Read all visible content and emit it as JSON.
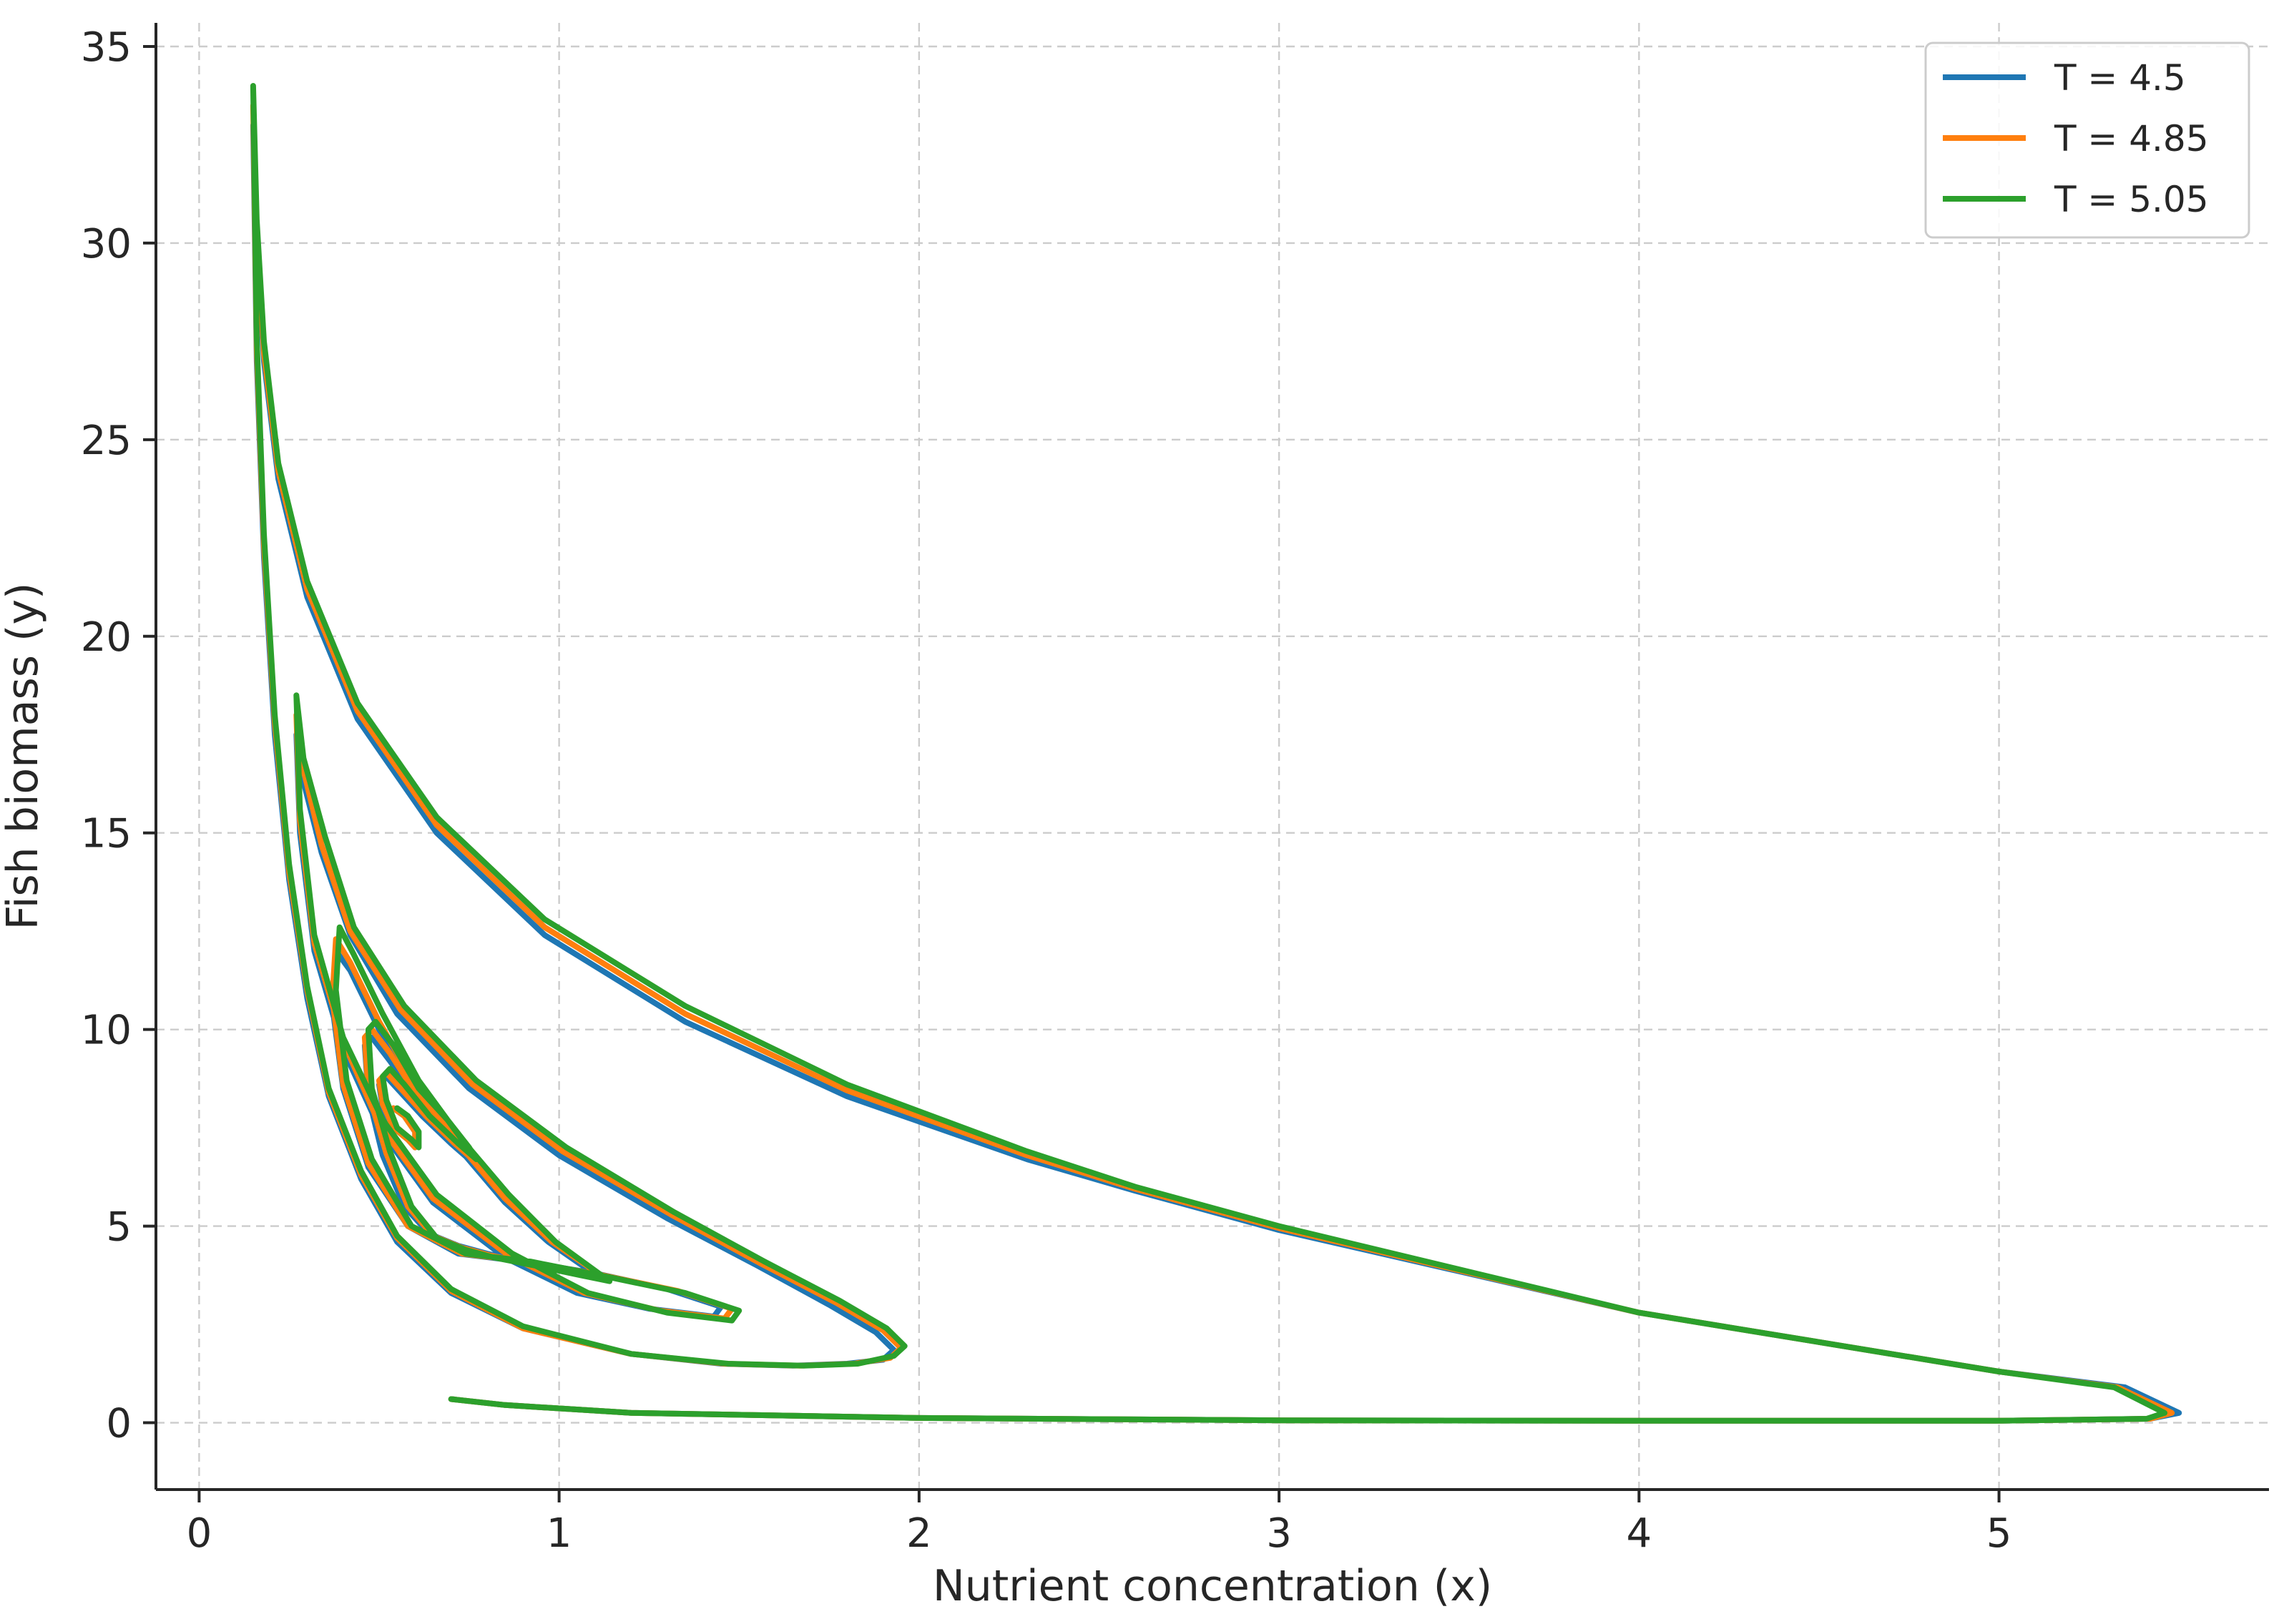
{
  "chart_data": {
    "type": "line",
    "title": "",
    "xlabel": "Nutrient concentration (x)",
    "ylabel": "Fish biomass (y)",
    "xlim": [
      -0.12,
      5.75
    ],
    "ylim": [
      -1.7,
      35.6
    ],
    "xticks": [
      0,
      1,
      2,
      3,
      4,
      5
    ],
    "yticks": [
      0,
      5,
      10,
      15,
      20,
      25,
      30,
      35
    ],
    "grid": true,
    "legend_position": "top-right",
    "series": [
      {
        "name": "T = 4.5",
        "color": "#1f77b4",
        "x": [
          0.7,
          0.85,
          1.2,
          2.0,
          3.0,
          4.0,
          5.0,
          5.42,
          5.5,
          5.35,
          5.0,
          4.0,
          3.0,
          2.6,
          2.3,
          1.8,
          1.35,
          0.96,
          0.66,
          0.44,
          0.3,
          0.22,
          0.18,
          0.16,
          0.15,
          0.16,
          0.18,
          0.21,
          0.25,
          0.3,
          0.36,
          0.45,
          0.55,
          0.7,
          0.9,
          1.2,
          1.45,
          1.65,
          1.8,
          1.9,
          1.93,
          1.88,
          1.75,
          1.55,
          1.3,
          1.0,
          0.75,
          0.55,
          0.42,
          0.34,
          0.29,
          0.27,
          0.28,
          0.32,
          0.4,
          0.5,
          0.65,
          0.85,
          1.05,
          1.25,
          1.43,
          1.45,
          1.3,
          1.1,
          0.9,
          0.72,
          0.58,
          0.47,
          0.4,
          0.37,
          0.38,
          0.42,
          0.5,
          0.6,
          0.72,
          0.85,
          0.97,
          1.08,
          1.1,
          1.02,
          0.9,
          0.8,
          0.72,
          0.64,
          0.57,
          0.51,
          0.47,
          0.46,
          0.48,
          0.53,
          0.6,
          0.67,
          0.73,
          0.75,
          0.7,
          0.62,
          0.56,
          0.52,
          0.5,
          0.51,
          0.54,
          0.58,
          0.6,
          0.6,
          0.57,
          0.54
        ],
        "y": [
          0.6,
          0.45,
          0.25,
          0.12,
          0.06,
          0.05,
          0.05,
          0.1,
          0.25,
          0.9,
          1.3,
          2.8,
          4.9,
          5.9,
          6.7,
          8.3,
          10.2,
          12.4,
          15.0,
          17.9,
          21.0,
          24.0,
          27.0,
          30.0,
          33.0,
          27.0,
          22.0,
          17.5,
          13.8,
          10.8,
          8.3,
          6.2,
          4.6,
          3.3,
          2.4,
          1.75,
          1.5,
          1.45,
          1.5,
          1.6,
          1.85,
          2.3,
          3.0,
          4.0,
          5.2,
          6.8,
          8.5,
          10.4,
          12.4,
          14.5,
          16.3,
          17.5,
          15.0,
          12.0,
          9.5,
          7.5,
          5.6,
          4.2,
          3.3,
          2.9,
          2.7,
          2.95,
          3.4,
          3.8,
          4.1,
          4.3,
          5.0,
          6.5,
          8.5,
          10.6,
          12.0,
          11.5,
          10.0,
          8.5,
          7.0,
          5.6,
          4.6,
          3.9,
          3.7,
          3.85,
          4.1,
          4.3,
          4.5,
          4.8,
          5.5,
          6.8,
          8.3,
          9.6,
          9.8,
          9.2,
          8.3,
          7.5,
          7.0,
          6.7,
          7.1,
          7.8,
          8.4,
          8.8,
          8.6,
          8.0,
          7.5,
          7.2,
          7.0,
          7.4,
          7.8,
          8.0
        ]
      },
      {
        "name": "T = 4.85",
        "color": "#ff7f0e",
        "x": [
          0.7,
          0.85,
          1.2,
          2.0,
          3.0,
          4.0,
          5.0,
          5.42,
          5.48,
          5.33,
          5.0,
          4.0,
          3.0,
          2.6,
          2.3,
          1.8,
          1.35,
          0.96,
          0.66,
          0.44,
          0.3,
          0.22,
          0.18,
          0.16,
          0.15,
          0.16,
          0.18,
          0.21,
          0.25,
          0.3,
          0.36,
          0.45,
          0.55,
          0.7,
          0.9,
          1.2,
          1.46,
          1.67,
          1.82,
          1.92,
          1.95,
          1.9,
          1.77,
          1.56,
          1.31,
          1.01,
          0.76,
          0.56,
          0.42,
          0.34,
          0.29,
          0.27,
          0.28,
          0.32,
          0.4,
          0.5,
          0.65,
          0.86,
          1.07,
          1.28,
          1.46,
          1.48,
          1.33,
          1.12,
          0.91,
          0.73,
          0.58,
          0.47,
          0.4,
          0.37,
          0.38,
          0.42,
          0.5,
          0.6,
          0.72,
          0.85,
          0.98,
          1.1,
          1.12,
          1.04,
          0.92,
          0.81,
          0.73,
          0.65,
          0.58,
          0.52,
          0.47,
          0.46,
          0.48,
          0.53,
          0.6,
          0.68,
          0.74,
          0.76,
          0.71,
          0.63,
          0.56,
          0.52,
          0.5,
          0.51,
          0.54,
          0.58,
          0.6,
          0.6,
          0.57,
          0.54
        ],
        "y": [
          0.6,
          0.45,
          0.25,
          0.12,
          0.06,
          0.05,
          0.05,
          0.1,
          0.25,
          0.9,
          1.3,
          2.8,
          4.95,
          5.95,
          6.8,
          8.45,
          10.4,
          12.6,
          15.2,
          18.1,
          21.2,
          24.2,
          27.2,
          30.3,
          33.5,
          27.3,
          22.3,
          17.8,
          14.0,
          11.0,
          8.4,
          6.3,
          4.7,
          3.35,
          2.4,
          1.75,
          1.5,
          1.45,
          1.5,
          1.65,
          1.9,
          2.35,
          3.05,
          4.05,
          5.3,
          6.9,
          8.6,
          10.5,
          12.5,
          14.7,
          16.6,
          18.0,
          15.3,
          12.2,
          9.7,
          7.6,
          5.7,
          4.25,
          3.3,
          2.85,
          2.65,
          2.9,
          3.35,
          3.75,
          4.1,
          4.3,
          5.0,
          6.6,
          8.6,
          10.8,
          12.3,
          11.7,
          10.2,
          8.6,
          7.1,
          5.7,
          4.6,
          3.85,
          3.65,
          3.8,
          4.05,
          4.25,
          4.45,
          4.75,
          5.5,
          6.85,
          8.4,
          9.8,
          10.0,
          9.4,
          8.4,
          7.6,
          7.0,
          6.7,
          7.1,
          7.8,
          8.5,
          8.9,
          8.7,
          8.1,
          7.5,
          7.2,
          7.0,
          7.4,
          7.8,
          8.0
        ]
      },
      {
        "name": "T = 5.05",
        "color": "#2ca02c",
        "x": [
          0.7,
          0.85,
          1.2,
          2.0,
          3.0,
          4.0,
          5.0,
          5.41,
          5.46,
          5.32,
          5.0,
          4.0,
          3.0,
          2.6,
          2.3,
          1.8,
          1.35,
          0.96,
          0.66,
          0.44,
          0.3,
          0.22,
          0.18,
          0.16,
          0.15,
          0.16,
          0.18,
          0.21,
          0.25,
          0.3,
          0.36,
          0.45,
          0.55,
          0.7,
          0.9,
          1.2,
          1.47,
          1.68,
          1.83,
          1.93,
          1.96,
          1.91,
          1.78,
          1.57,
          1.32,
          1.02,
          0.77,
          0.57,
          0.43,
          0.35,
          0.29,
          0.27,
          0.28,
          0.32,
          0.4,
          0.51,
          0.66,
          0.87,
          1.08,
          1.3,
          1.48,
          1.5,
          1.35,
          1.14,
          0.92,
          0.74,
          0.59,
          0.48,
          0.41,
          0.38,
          0.39,
          0.43,
          0.51,
          0.61,
          0.73,
          0.86,
          0.99,
          1.11,
          1.14,
          1.06,
          0.93,
          0.82,
          0.74,
          0.66,
          0.59,
          0.53,
          0.48,
          0.47,
          0.49,
          0.54,
          0.61,
          0.69,
          0.75,
          0.77,
          0.72,
          0.64,
          0.57,
          0.53,
          0.51,
          0.52,
          0.55,
          0.59,
          0.61,
          0.61,
          0.58,
          0.55
        ],
        "y": [
          0.6,
          0.45,
          0.25,
          0.12,
          0.06,
          0.05,
          0.05,
          0.1,
          0.25,
          0.9,
          1.3,
          2.8,
          5.0,
          6.0,
          6.9,
          8.6,
          10.6,
          12.8,
          15.4,
          18.3,
          21.4,
          24.4,
          27.5,
          30.6,
          34.0,
          27.6,
          22.6,
          18.0,
          14.2,
          11.1,
          8.5,
          6.4,
          4.75,
          3.4,
          2.45,
          1.75,
          1.5,
          1.45,
          1.5,
          1.7,
          1.95,
          2.4,
          3.1,
          4.1,
          5.35,
          7.0,
          8.7,
          10.6,
          12.6,
          14.9,
          16.9,
          18.5,
          15.6,
          12.4,
          9.8,
          7.7,
          5.8,
          4.3,
          3.3,
          2.8,
          2.6,
          2.85,
          3.3,
          3.7,
          4.1,
          4.3,
          5.0,
          6.7,
          8.7,
          11.0,
          12.6,
          11.9,
          10.4,
          8.7,
          7.2,
          5.8,
          4.6,
          3.8,
          3.6,
          3.75,
          4.0,
          4.2,
          4.4,
          4.7,
          5.5,
          6.9,
          8.5,
          10.0,
          10.2,
          9.6,
          8.5,
          7.7,
          7.0,
          6.7,
          7.1,
          7.8,
          8.6,
          9.0,
          8.8,
          8.2,
          7.5,
          7.2,
          7.0,
          7.4,
          7.8,
          8.0
        ]
      }
    ]
  }
}
